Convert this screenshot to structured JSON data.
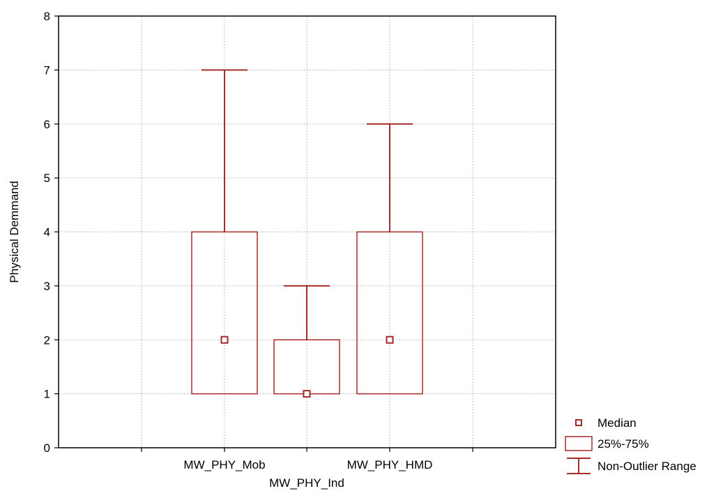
{
  "chart_data": {
    "type": "boxplot",
    "title": "",
    "xlabel": "",
    "ylabel": "Physical Demmand",
    "ylim": [
      0,
      8
    ],
    "yticks": [
      0,
      1,
      2,
      3,
      4,
      5,
      6,
      7,
      8
    ],
    "grid": true,
    "categories": [
      "MW_PHY_Mob",
      "MW_PHY_Ind",
      "MW_PHY_HMD"
    ],
    "boxes": [
      {
        "name": "MW_PHY_Mob",
        "median": 2,
        "q1": 1,
        "q3": 4,
        "whisker_low": 1,
        "whisker_high": 7
      },
      {
        "name": "MW_PHY_Ind",
        "median": 1,
        "q1": 1,
        "q3": 2,
        "whisker_low": 1,
        "whisker_high": 3
      },
      {
        "name": "MW_PHY_HMD",
        "median": 2,
        "q1": 1,
        "q3": 4,
        "whisker_low": 1,
        "whisker_high": 6
      }
    ],
    "legend": {
      "position": "bottom-right",
      "entries": [
        "Median",
        "25%-75%",
        "Non-Outlier Range"
      ]
    },
    "colors": {
      "box": "#a52a2a",
      "grid": "#bdbdbd",
      "axis": "#000000"
    }
  }
}
